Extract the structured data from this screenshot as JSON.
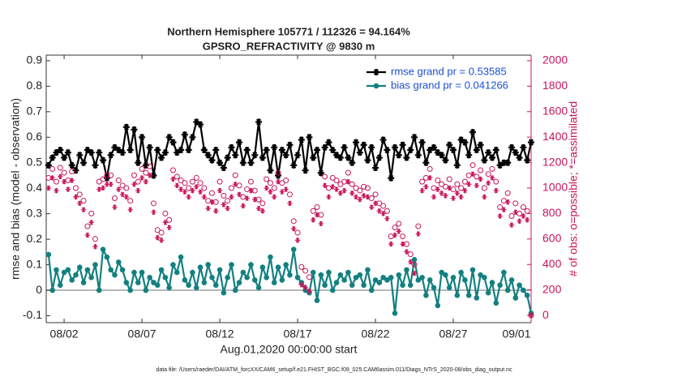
{
  "chart_data": {
    "type": "line",
    "title": "Northern Hemisphere 105771 / 112326 = 94.164%",
    "subtitle": "GPSRO_REFRACTIVITY @ 9830 m",
    "xlabel": "Aug.01,2020 00:00:00 start",
    "ylabel": "rmse and bias (model - observation)",
    "y2label": "# of obs: o=possible; *=assimilated",
    "footnote": "data file: /Users/raeder/DAI/ATM_forcXX/CAM6_setup/f.e21.FHIST_BGC.f09_025.CAM6assim.011/Diags_NTrS_2020-08/obs_diag_output.nc",
    "legend": "upper right",
    "zero_line": true,
    "xlim": [
      -0.15,
      31.0
    ],
    "xticks": [
      {
        "value": 1,
        "label": "08/02"
      },
      {
        "value": 6,
        "label": "08/07"
      },
      {
        "value": 11,
        "label": "08/12"
      },
      {
        "value": 16,
        "label": "08/17"
      },
      {
        "value": 21,
        "label": "08/22"
      },
      {
        "value": 26,
        "label": "08/27"
      },
      {
        "value": 31,
        "label": "09/01"
      }
    ],
    "ylim": [
      -0.127,
      0.922
    ],
    "yticks": [
      -0.1,
      0,
      0.1,
      0.2,
      0.3,
      0.4,
      0.5,
      0.6,
      0.7,
      0.8,
      0.9
    ],
    "y2lim": [
      -57,
      2044
    ],
    "y2ticks": [
      0,
      200,
      400,
      600,
      800,
      1000,
      1200,
      1400,
      1600,
      1800,
      2000
    ],
    "x": [
      0,
      0.25,
      0.5,
      0.75,
      1,
      1.25,
      1.5,
      1.75,
      2,
      2.25,
      2.5,
      2.75,
      3,
      3.25,
      3.5,
      3.75,
      4,
      4.25,
      4.5,
      4.75,
      5,
      5.25,
      5.5,
      5.75,
      6,
      6.25,
      6.5,
      6.75,
      7,
      7.25,
      7.5,
      7.75,
      8,
      8.25,
      8.5,
      8.75,
      9,
      9.25,
      9.5,
      9.75,
      10,
      10.25,
      10.5,
      10.75,
      11,
      11.25,
      11.5,
      11.75,
      12,
      12.25,
      12.5,
      12.75,
      13,
      13.25,
      13.5,
      13.75,
      14,
      14.25,
      14.5,
      14.75,
      15,
      15.25,
      15.5,
      15.75,
      16,
      16.25,
      16.5,
      16.75,
      17,
      17.25,
      17.5,
      17.75,
      18,
      18.25,
      18.5,
      18.75,
      19,
      19.25,
      19.5,
      19.75,
      20,
      20.25,
      20.5,
      20.75,
      21,
      21.25,
      21.5,
      21.75,
      22,
      22.25,
      22.5,
      22.75,
      23,
      23.25,
      23.5,
      23.75,
      24,
      24.25,
      24.5,
      24.75,
      25,
      25.25,
      25.5,
      25.75,
      26,
      26.25,
      26.5,
      26.75,
      27,
      27.25,
      27.5,
      27.75,
      28,
      28.25,
      28.5,
      28.75,
      29,
      29.25,
      29.5,
      29.75,
      30,
      30.25,
      30.5,
      30.75,
      31
    ],
    "series": [
      {
        "name": "rmse grand pr = 0.53585",
        "color": "#000000",
        "marker": "star",
        "line": true,
        "values": [
          0.49,
          0.52,
          0.54,
          0.55,
          0.52,
          0.54,
          0.49,
          0.47,
          0.53,
          0.5,
          0.55,
          0.54,
          0.49,
          0.54,
          0.51,
          0.44,
          0.53,
          0.56,
          0.55,
          0.54,
          0.64,
          0.55,
          0.63,
          0.5,
          0.6,
          0.49,
          0.56,
          0.45,
          0.55,
          0.52,
          0.54,
          0.6,
          0.58,
          0.54,
          0.55,
          0.61,
          0.55,
          0.6,
          0.66,
          0.65,
          0.55,
          0.53,
          0.51,
          0.55,
          0.5,
          0.48,
          0.52,
          0.56,
          0.53,
          0.58,
          0.5,
          0.55,
          0.5,
          0.53,
          0.66,
          0.52,
          0.55,
          0.47,
          0.56,
          0.45,
          0.55,
          0.53,
          0.57,
          0.49,
          0.53,
          0.59,
          0.47,
          0.6,
          0.52,
          0.55,
          0.46,
          0.56,
          0.58,
          0.55,
          0.53,
          0.52,
          0.56,
          0.52,
          0.5,
          0.58,
          0.54,
          0.57,
          0.51,
          0.56,
          0.48,
          0.52,
          0.59,
          0.55,
          0.44,
          0.56,
          0.53,
          0.57,
          0.52,
          0.55,
          0.6,
          0.53,
          0.58,
          0.5,
          0.55,
          0.56,
          0.54,
          0.53,
          0.51,
          0.57,
          0.55,
          0.49,
          0.59,
          0.58,
          0.53,
          0.62,
          0.55,
          0.57,
          0.51,
          0.54,
          0.52,
          0.55,
          0.49,
          0.5,
          0.5,
          0.56,
          0.54,
          0.52,
          0.56,
          0.51,
          0.58
        ]
      },
      {
        "name": "bias grand pr = 0.041266",
        "color": "#138080",
        "marker": "circle",
        "line": true,
        "values": [
          0.14,
          0.0,
          0.08,
          0.02,
          0.07,
          0.08,
          0.04,
          0.06,
          0.09,
          0.03,
          0.08,
          0.05,
          0.1,
          0.0,
          0.16,
          0.13,
          0.08,
          0.06,
          0.11,
          0.08,
          0.03,
          0.0,
          0.07,
          0.03,
          0.07,
          0.0,
          0.05,
          0.03,
          0.02,
          0.08,
          0.05,
          0.01,
          0.1,
          0.07,
          0.13,
          0.04,
          0.02,
          0.07,
          0.01,
          0.09,
          0.03,
          0.1,
          0.05,
          0.02,
          0.08,
          -0.01,
          0.05,
          0.1,
          0.0,
          0.03,
          0.07,
          0.05,
          0.1,
          0.04,
          0.01,
          0.09,
          0.05,
          0.13,
          0.03,
          0.09,
          0.04,
          0.1,
          0.06,
          0.16,
          0.05,
          0.03,
          0.0,
          -0.01,
          0.07,
          -0.04,
          0.06,
          0.02,
          0.07,
          0.0,
          0.03,
          0.06,
          0.04,
          0.07,
          0.02,
          0.05,
          0.06,
          0.02,
          0.08,
          0.0,
          0.04,
          0.03,
          0.05,
          0.04,
          0.05,
          -0.09,
          0.06,
          0.02,
          0.08,
          0.02,
          0.12,
          0.04,
          0.05,
          -0.02,
          0.04,
          0.01,
          -0.06,
          0.07,
          0.06,
          0.01,
          0.05,
          -0.02,
          0.07,
          0.04,
          -0.02,
          0.08,
          -0.03,
          0.06,
          0.05,
          -0.01,
          0.03,
          -0.05,
          0.02,
          0.07,
          0.0,
          0.04,
          -0.03,
          0.02,
          0.0,
          -0.02,
          -0.09
        ]
      },
      {
        "color": "#c8155a",
        "marker": "open-circle",
        "line": false,
        "axis": "y2",
        "values": [
          1080,
          1150,
          1050,
          1160,
          1120,
          1060,
          1130,
          1000,
          950,
          900,
          700,
          800,
          600,
          1050,
          1070,
          1100,
          1100,
          920,
          1060,
          1020,
          1000,
          900,
          1100,
          1050,
          1150,
          1120,
          1170,
          880,
          670,
          650,
          800,
          750,
          1140,
          1090,
          1060,
          1040,
          1000,
          1050,
          1080,
          1040,
          1000,
          900,
          960,
          890,
          1050,
          940,
          900,
          1000,
          1100,
          1020,
          930,
          990,
          1050,
          980,
          910,
          880,
          1070,
          1040,
          1000,
          1120,
          1040,
          1060,
          950,
          740,
          650,
          380,
          350,
          300,
          820,
          850,
          790,
          1090,
          1000,
          1080,
          1060,
          1030,
          1050,
          1120,
          1030,
          1000,
          980,
          1010,
          1000,
          920,
          950,
          880,
          860,
          820,
          620,
          690,
          720,
          620,
          560,
          480,
          400,
          700,
          1050,
          1080,
          1150,
          1000,
          1060,
          1030,
          1010,
          1070,
          990,
          1030,
          1000,
          1050,
          1100,
          1180,
          1090,
          1140,
          1000,
          1110,
          1150,
          1050,
          850,
          900,
          960,
          780,
          880,
          800,
          850,
          820,
          0
        ]
      },
      {
        "color": "#c8155a",
        "marker": "asterisk",
        "line": false,
        "axis": "y2",
        "values": [
          1000,
          1080,
          980,
          1090,
          1050,
          990,
          1060,
          930,
          880,
          830,
          630,
          730,
          540,
          990,
          1000,
          1030,
          1030,
          850,
          990,
          950,
          930,
          830,
          1030,
          980,
          1080,
          1050,
          1100,
          810,
          610,
          590,
          730,
          690,
          1070,
          1020,
          990,
          970,
          930,
          980,
          1010,
          970,
          930,
          840,
          890,
          820,
          980,
          870,
          840,
          930,
          1030,
          950,
          860,
          920,
          980,
          910,
          840,
          820,
          1000,
          970,
          930,
          1050,
          970,
          990,
          880,
          680,
          590,
          240,
          220,
          190,
          750,
          790,
          720,
          1020,
          930,
          1010,
          990,
          960,
          980,
          1050,
          960,
          930,
          910,
          940,
          930,
          850,
          880,
          820,
          800,
          760,
          560,
          630,
          660,
          560,
          500,
          420,
          330,
          640,
          980,
          1010,
          1080,
          930,
          990,
          960,
          940,
          1000,
          920,
          960,
          930,
          980,
          1030,
          1110,
          1020,
          1070,
          930,
          1040,
          1080,
          980,
          780,
          830,
          890,
          710,
          810,
          740,
          780,
          750,
          0
        ]
      }
    ]
  }
}
